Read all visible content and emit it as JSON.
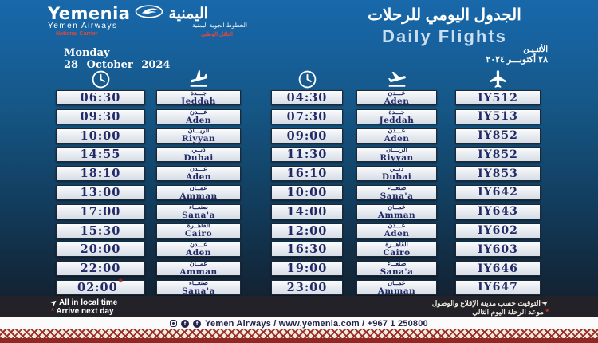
{
  "brand": {
    "name_en": "Yemenia",
    "subtitle_en": "Yemen Airways",
    "name_ar": "اليمنية",
    "subtitle_ar": "الخطوط الجوية اليمنية",
    "tagline_en": "National Carrier",
    "tagline_ar": "الناقل الوطني"
  },
  "header": {
    "title_ar": "الجدول اليومي للرحلات",
    "title_en": "Daily Flights"
  },
  "date": {
    "weekday_en": "Monday",
    "date_en": "28 October 2024",
    "weekday_ar": "الأثنـيـن",
    "date_ar": "٢٨ أكتوبـــر ٢٠٢٤"
  },
  "columns": [
    "arrival-time",
    "arrival-city",
    "departure-time",
    "departure-city",
    "flight-number"
  ],
  "flights": [
    {
      "flight": "IY512",
      "dep_time": "04:30",
      "dep_city_ar": "عـــدن",
      "dep_city_en": "Aden",
      "arr_time": "06:30",
      "arr_city_ar": "جـــدة",
      "arr_city_en": "Jeddah",
      "arr_next_day": false
    },
    {
      "flight": "IY513",
      "dep_time": "07:30",
      "dep_city_ar": "جـــدة",
      "dep_city_en": "Jeddah",
      "arr_time": "09:30",
      "arr_city_ar": "عـــدن",
      "arr_city_en": "Aden",
      "arr_next_day": false
    },
    {
      "flight": "IY852",
      "dep_time": "09:00",
      "dep_city_ar": "عـــدن",
      "dep_city_en": "Aden",
      "arr_time": "10:00",
      "arr_city_ar": "الريـــان",
      "arr_city_en": "Riyyan",
      "arr_next_day": false
    },
    {
      "flight": "IY852",
      "dep_time": "11:30",
      "dep_city_ar": "الريـــان",
      "dep_city_en": "Riyyan",
      "arr_time": "14:55",
      "arr_city_ar": "دبــي",
      "arr_city_en": "Dubai",
      "arr_next_day": false
    },
    {
      "flight": "IY853",
      "dep_time": "16:10",
      "dep_city_ar": "دبــي",
      "dep_city_en": "Dubai",
      "arr_time": "18:10",
      "arr_city_ar": "عـــدن",
      "arr_city_en": "Aden",
      "arr_next_day": false
    },
    {
      "flight": "IY642",
      "dep_time": "10:00",
      "dep_city_ar": "صنعــاء",
      "dep_city_en": "Sana'a",
      "arr_time": "13:00",
      "arr_city_ar": "عمــان",
      "arr_city_en": "Amman",
      "arr_next_day": false
    },
    {
      "flight": "IY643",
      "dep_time": "14:00",
      "dep_city_ar": "عمــان",
      "dep_city_en": "Amman",
      "arr_time": "17:00",
      "arr_city_ar": "صنعــاء",
      "arr_city_en": "Sana'a",
      "arr_next_day": false
    },
    {
      "flight": "IY602",
      "dep_time": "12:00",
      "dep_city_ar": "عـــدن",
      "dep_city_en": "Aden",
      "arr_time": "15:30",
      "arr_city_ar": "القاهــرة",
      "arr_city_en": "Cairo",
      "arr_next_day": false
    },
    {
      "flight": "IY603",
      "dep_time": "16:30",
      "dep_city_ar": "القاهــرة",
      "dep_city_en": "Cairo",
      "arr_time": "20:00",
      "arr_city_ar": "عـــدن",
      "arr_city_en": "Aden",
      "arr_next_day": false
    },
    {
      "flight": "IY646",
      "dep_time": "19:00",
      "dep_city_ar": "صنعــاء",
      "dep_city_en": "Sana'a",
      "arr_time": "22:00",
      "arr_city_ar": "عمــان",
      "arr_city_en": "Amman",
      "arr_next_day": false
    },
    {
      "flight": "IY647",
      "dep_time": "23:00",
      "dep_city_ar": "عمــان",
      "dep_city_en": "Amman",
      "arr_time": "02:00",
      "arr_city_ar": "صنعــاء",
      "arr_city_en": "Sana'a",
      "arr_next_day": true
    }
  ],
  "footnotes": {
    "asterisk": "*",
    "local_time_en": "All in local time",
    "next_day_en": "Arrive next day",
    "local_time_ar": "التوقيت حسب مدينة الإقلاع والوصول",
    "next_day_ar": "موعد الرحلة اليوم التالي"
  },
  "contact": {
    "text": "Yemen Airways / www.yemenia.com / +967 1 250800"
  },
  "colors": {
    "bg_top": "#1868aa",
    "bg_bottom": "#151d29",
    "cell_text": "#222a66",
    "accent_red": "#8e2820",
    "notes_strip": "#232229"
  }
}
